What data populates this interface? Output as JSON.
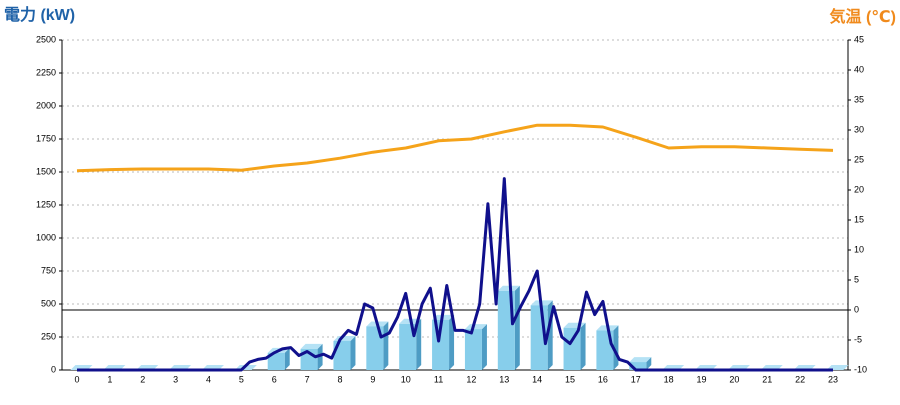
{
  "chart_data": {
    "type": "bar",
    "ylabel": "電力 (kW)",
    "y2label": "気温 (℃)",
    "categories": [
      "0",
      "1",
      "2",
      "3",
      "4",
      "5",
      "6",
      "7",
      "8",
      "9",
      "10",
      "11",
      "12",
      "13",
      "14",
      "15",
      "16",
      "17",
      "18",
      "19",
      "20",
      "21",
      "22",
      "23"
    ],
    "ylim": [
      0,
      2500
    ],
    "yticks": [
      0,
      250,
      500,
      750,
      1000,
      1250,
      1500,
      1750,
      2000,
      2250,
      2500
    ],
    "y2lim": [
      -10,
      45
    ],
    "y2ticks": [
      -10,
      -5,
      0,
      5,
      10,
      15,
      20,
      25,
      30,
      35,
      40,
      45
    ],
    "grid": true,
    "series": [
      {
        "type": "bar",
        "color": "#87ceeb",
        "values": [
          0,
          0,
          0,
          0,
          0,
          0,
          130,
          160,
          220,
          330,
          350,
          380,
          310,
          600,
          490,
          320,
          300,
          60,
          0,
          0,
          0,
          0,
          0,
          0
        ]
      },
      {
        "type": "line",
        "color": "#10108c",
        "x": [
          0,
          1,
          2,
          3,
          4,
          5,
          5.25,
          5.5,
          5.75,
          6,
          6.25,
          6.5,
          6.75,
          7,
          7.25,
          7.5,
          7.75,
          8,
          8.25,
          8.5,
          8.75,
          9,
          9.25,
          9.5,
          9.75,
          10,
          10.25,
          10.5,
          10.75,
          11,
          11.25,
          11.5,
          11.75,
          12,
          12.25,
          12.5,
          12.75,
          13,
          13.25,
          13.5,
          13.75,
          14,
          14.25,
          14.5,
          14.75,
          15,
          15.25,
          15.5,
          15.75,
          16,
          16.25,
          16.5,
          16.75,
          17,
          18,
          19,
          20,
          21,
          22,
          23
        ],
        "values": [
          0,
          0,
          0,
          0,
          0,
          0,
          60,
          80,
          90,
          130,
          160,
          170,
          110,
          140,
          100,
          120,
          90,
          230,
          300,
          270,
          500,
          470,
          250,
          280,
          400,
          580,
          260,
          500,
          620,
          220,
          640,
          300,
          300,
          280,
          500,
          1260,
          500,
          1450,
          350,
          480,
          600,
          750,
          200,
          480,
          250,
          200,
          300,
          590,
          420,
          520,
          200,
          80,
          60,
          0,
          0,
          0,
          0,
          0,
          0,
          0
        ]
      },
      {
        "type": "line",
        "axis": "y2",
        "color": "#f5a31a",
        "values": [
          23.2,
          23.4,
          23.5,
          23.5,
          23.5,
          23.3,
          24,
          24.5,
          25.3,
          26.3,
          27,
          28.2,
          28.5,
          29.7,
          30.8,
          30.8,
          30.5,
          28.8,
          27,
          27.2,
          27.2,
          27,
          26.8,
          26.6
        ]
      }
    ]
  }
}
